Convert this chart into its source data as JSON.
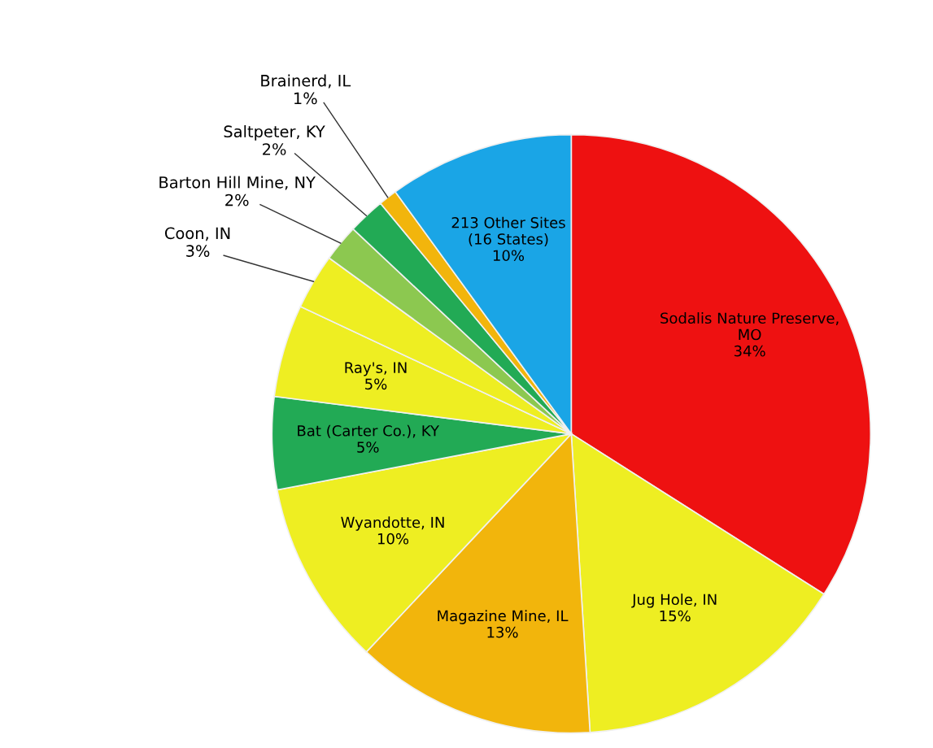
{
  "chart_data": {
    "type": "pie",
    "categories": [
      "Sodalis Nature Preserve,\nMO",
      "Jug Hole, IN",
      "Magazine Mine, IL",
      "Wyandotte, IN",
      "Bat (Carter Co.), KY",
      "Ray's, IN",
      "Coon, IN",
      "Barton Hill Mine, NY",
      "Saltpeter, KY",
      "Brainerd, IL",
      "213 Other Sites\n(16 States)"
    ],
    "values": [
      34,
      15,
      13,
      10,
      5,
      5,
      3,
      2,
      2,
      1,
      10
    ],
    "value_labels": [
      "34%",
      "15%",
      "13%",
      "10%",
      "5%",
      "5%",
      "3%",
      "2%",
      "2%",
      "1%",
      "10%"
    ],
    "colors": [
      "#ee1111",
      "#eeee22",
      "#f2b50c",
      "#eeee22",
      "#22aa55",
      "#eeee22",
      "#eeee22",
      "#8cc850",
      "#22aa55",
      "#f2b50c",
      "#1aa5e6"
    ]
  }
}
